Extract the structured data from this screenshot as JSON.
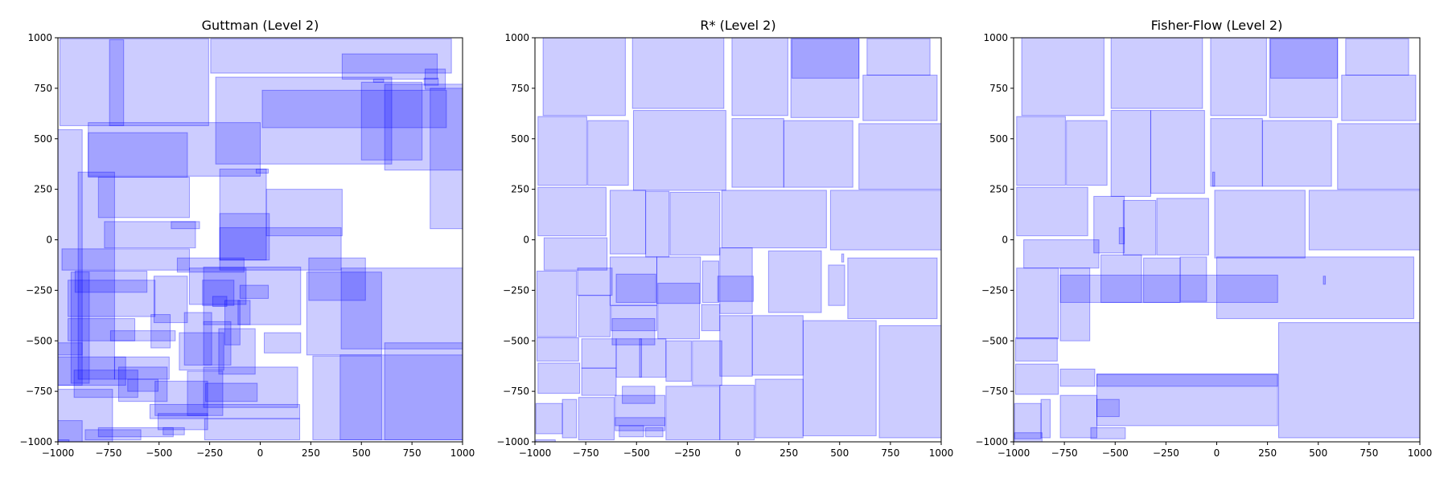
{
  "figure": {
    "background": "#ffffff",
    "fill_color": "#0000ff",
    "fill_opacity": 0.2,
    "edge_opacity": 0.35
  },
  "chart_data": [
    {
      "type": "rectangles",
      "title": "Guttman (Level 2)",
      "xlim": [
        -1000,
        1000
      ],
      "ylim": [
        -1000,
        1000
      ],
      "xticks": [
        -1000,
        -750,
        -500,
        -250,
        0,
        250,
        500,
        750,
        1000
      ],
      "yticks": [
        -1000,
        -750,
        -500,
        -250,
        0,
        250,
        500,
        750,
        1000
      ],
      "grid": false,
      "rects": [
        [
          -990,
          565,
          -255,
          995
        ],
        [
          -745,
          565,
          -675,
          990
        ],
        [
          -245,
          825,
          945,
          995
        ],
        [
          -220,
          375,
          650,
          805
        ],
        [
          -850,
          315,
          0,
          580
        ],
        [
          -1000,
          -570,
          -880,
          545
        ],
        [
          -850,
          310,
          -360,
          530
        ],
        [
          -900,
          -690,
          -720,
          335
        ],
        [
          -800,
          110,
          -350,
          310
        ],
        [
          -770,
          -40,
          -320,
          90
        ],
        [
          -440,
          55,
          -300,
          90
        ],
        [
          -980,
          -150,
          -350,
          -45
        ],
        [
          -935,
          -710,
          -845,
          -160
        ],
        [
          -1000,
          -720,
          -665,
          -580
        ],
        [
          -1000,
          -720,
          -880,
          -510
        ],
        [
          -950,
          -380,
          -520,
          -200
        ],
        [
          -915,
          -260,
          -560,
          -155
        ],
        [
          -950,
          -500,
          -620,
          -390
        ],
        [
          -740,
          -500,
          -420,
          -450
        ],
        [
          -720,
          -690,
          -450,
          -580
        ],
        [
          -920,
          -780,
          -605,
          -645
        ],
        [
          -655,
          -750,
          -505,
          -690
        ],
        [
          -520,
          -870,
          -260,
          -700
        ],
        [
          -505,
          -940,
          -260,
          -860
        ],
        [
          -545,
          -885,
          195,
          -815
        ],
        [
          -275,
          -990,
          195,
          -885
        ],
        [
          -1000,
          -1000,
          -730,
          -740
        ],
        [
          -1000,
          -1000,
          -880,
          -895
        ],
        [
          -865,
          -990,
          -590,
          -940
        ],
        [
          -800,
          -975,
          -430,
          -930
        ],
        [
          -480,
          -965,
          -375,
          -930
        ],
        [
          -1000,
          -1000,
          -945,
          -990
        ],
        [
          -700,
          -800,
          -460,
          -630
        ],
        [
          -525,
          -410,
          -360,
          -180
        ],
        [
          -540,
          -535,
          -445,
          -370
        ],
        [
          -400,
          -645,
          -180,
          -460
        ],
        [
          -375,
          -620,
          -240,
          -360
        ],
        [
          -360,
          -870,
          -185,
          -650
        ],
        [
          -280,
          -830,
          185,
          -630
        ],
        [
          -280,
          -420,
          200,
          -135
        ],
        [
          -285,
          -325,
          -130,
          -200
        ],
        [
          -280,
          -620,
          -145,
          -405
        ],
        [
          -175,
          -520,
          -100,
          -300
        ],
        [
          -205,
          -665,
          -25,
          -440
        ],
        [
          -110,
          -420,
          -50,
          -300
        ],
        [
          -200,
          -100,
          45,
          130
        ],
        [
          -200,
          -150,
          400,
          60
        ],
        [
          -410,
          -160,
          -80,
          -90
        ],
        [
          -350,
          -320,
          -70,
          -140
        ],
        [
          -100,
          -290,
          40,
          -225
        ],
        [
          -200,
          -100,
          30,
          350
        ],
        [
          -20,
          330,
          40,
          350
        ],
        [
          20,
          -560,
          200,
          -460
        ],
        [
          230,
          -570,
          600,
          -160
        ],
        [
          240,
          -300,
          520,
          -90
        ],
        [
          260,
          -990,
          600,
          -575
        ],
        [
          400,
          -540,
          1000,
          -140
        ],
        [
          395,
          -990,
          1000,
          -570
        ],
        [
          615,
          -990,
          1000,
          -510
        ],
        [
          30,
          20,
          405,
          250
        ],
        [
          10,
          555,
          920,
          740
        ],
        [
          615,
          345,
          1000,
          770
        ],
        [
          840,
          55,
          1000,
          750
        ],
        [
          500,
          395,
          800,
          780
        ],
        [
          405,
          795,
          875,
          920
        ],
        [
          560,
          780,
          610,
          795
        ],
        [
          815,
          745,
          915,
          845
        ],
        [
          810,
          765,
          880,
          800
        ],
        [
          -270,
          -800,
          -15,
          -710
        ],
        [
          -235,
          -330,
          -165,
          -280
        ]
      ]
    },
    {
      "type": "rectangles",
      "title": "R* (Level 2)",
      "xlim": [
        -1000,
        1000
      ],
      "ylim": [
        -1000,
        1000
      ],
      "xticks": [
        -1000,
        -750,
        -500,
        -250,
        0,
        250,
        500,
        750,
        1000
      ],
      "yticks": [
        -1000,
        -750,
        -500,
        -250,
        0,
        250,
        500,
        750,
        1000
      ],
      "grid": false,
      "rects": [
        [
          -960,
          615,
          -555,
          1000
        ],
        [
          -520,
          650,
          -70,
          1000
        ],
        [
          -30,
          615,
          245,
          1000
        ],
        [
          260,
          605,
          595,
          1000
        ],
        [
          265,
          800,
          595,
          995
        ],
        [
          635,
          815,
          945,
          995
        ],
        [
          615,
          590,
          980,
          815
        ],
        [
          -985,
          270,
          -745,
          610
        ],
        [
          -740,
          270,
          -540,
          590
        ],
        [
          -515,
          245,
          -60,
          640
        ],
        [
          -30,
          260,
          225,
          600
        ],
        [
          225,
          260,
          565,
          590
        ],
        [
          595,
          250,
          1000,
          575
        ],
        [
          -985,
          20,
          -650,
          260
        ],
        [
          -630,
          -70,
          -455,
          245
        ],
        [
          -455,
          -85,
          -340,
          240
        ],
        [
          -335,
          -75,
          -90,
          235
        ],
        [
          -80,
          -40,
          435,
          245
        ],
        [
          455,
          -50,
          1000,
          245
        ],
        [
          -955,
          -150,
          -645,
          10
        ],
        [
          -990,
          -480,
          -795,
          -155
        ],
        [
          -790,
          -275,
          -620,
          -140
        ],
        [
          -785,
          -480,
          -630,
          -275
        ],
        [
          -630,
          -325,
          -400,
          -85
        ],
        [
          -625,
          -450,
          -400,
          -325
        ],
        [
          -620,
          -520,
          -410,
          -390
        ],
        [
          -400,
          -315,
          -185,
          -85
        ],
        [
          -395,
          -490,
          -190,
          -215
        ],
        [
          -175,
          -310,
          -95,
          -105
        ],
        [
          -180,
          -450,
          -90,
          -320
        ],
        [
          -90,
          -365,
          70,
          -40
        ],
        [
          150,
          -360,
          410,
          -55
        ],
        [
          445,
          -325,
          525,
          -125
        ],
        [
          540,
          -390,
          980,
          -90
        ],
        [
          -100,
          -305,
          75,
          -180
        ],
        [
          -600,
          -310,
          -405,
          -170
        ],
        [
          -990,
          -600,
          -785,
          -485
        ],
        [
          -985,
          -760,
          -780,
          -610
        ],
        [
          -770,
          -635,
          -600,
          -490
        ],
        [
          -770,
          -770,
          -600,
          -635
        ],
        [
          -600,
          -680,
          -475,
          -490
        ],
        [
          -485,
          -680,
          -355,
          -490
        ],
        [
          -355,
          -700,
          -230,
          -500
        ],
        [
          -225,
          -720,
          -80,
          -500
        ],
        [
          -90,
          -675,
          70,
          -375
        ],
        [
          70,
          -670,
          320,
          -375
        ],
        [
          320,
          -970,
          680,
          -400
        ],
        [
          695,
          -980,
          1000,
          -425
        ],
        [
          -995,
          -960,
          -865,
          -810
        ],
        [
          -865,
          -980,
          -795,
          -790
        ],
        [
          -785,
          -990,
          -610,
          -780
        ],
        [
          -605,
          -920,
          -360,
          -770
        ],
        [
          -605,
          -945,
          -360,
          -880
        ],
        [
          -585,
          -975,
          -465,
          -920
        ],
        [
          -455,
          -975,
          -370,
          -930
        ],
        [
          -355,
          -990,
          -90,
          -725
        ],
        [
          -90,
          -990,
          80,
          -720
        ],
        [
          85,
          -980,
          320,
          -690
        ],
        [
          -570,
          -810,
          -410,
          -725
        ],
        [
          -995,
          -1000,
          -900,
          -990
        ],
        [
          510,
          -110,
          520,
          -70
        ]
      ]
    },
    {
      "type": "rectangles",
      "title": "Fisher-Flow (Level 2)",
      "xlim": [
        -1000,
        1000
      ],
      "ylim": [
        -1000,
        1000
      ],
      "xticks": [
        -1000,
        -750,
        -500,
        -250,
        0,
        250,
        500,
        750,
        1000
      ],
      "yticks": [
        -1000,
        -750,
        -500,
        -250,
        0,
        250,
        500,
        750,
        1000
      ],
      "grid": false,
      "rects": [
        [
          -960,
          615,
          -555,
          1000
        ],
        [
          -520,
          650,
          -70,
          1000
        ],
        [
          -30,
          615,
          245,
          1000
        ],
        [
          260,
          605,
          595,
          1000
        ],
        [
          265,
          800,
          595,
          995
        ],
        [
          635,
          815,
          945,
          995
        ],
        [
          615,
          590,
          980,
          815
        ],
        [
          -985,
          270,
          -745,
          610
        ],
        [
          -740,
          270,
          -540,
          590
        ],
        [
          -520,
          215,
          -325,
          640
        ],
        [
          -325,
          230,
          -60,
          640
        ],
        [
          -30,
          265,
          225,
          600
        ],
        [
          225,
          265,
          565,
          590
        ],
        [
          595,
          250,
          1000,
          575
        ],
        [
          -985,
          20,
          -635,
          260
        ],
        [
          -605,
          -65,
          -455,
          215
        ],
        [
          -460,
          -75,
          -300,
          195
        ],
        [
          -295,
          -75,
          -40,
          205
        ],
        [
          -20,
          265,
          -10,
          335
        ],
        [
          -10,
          -90,
          435,
          245
        ],
        [
          455,
          -50,
          1000,
          245
        ],
        [
          -950,
          -140,
          -580,
          0
        ],
        [
          -985,
          -490,
          -780,
          -140
        ],
        [
          -770,
          -500,
          -625,
          -140
        ],
        [
          -570,
          -310,
          -370,
          -75
        ],
        [
          -360,
          -310,
          -180,
          -90
        ],
        [
          -180,
          -305,
          -50,
          -85
        ],
        [
          -770,
          -310,
          300,
          -175
        ],
        [
          0,
          -390,
          970,
          -85
        ],
        [
          -990,
          -600,
          -785,
          -485
        ],
        [
          -990,
          -765,
          -780,
          -615
        ],
        [
          -770,
          -725,
          -600,
          -640
        ],
        [
          -770,
          -980,
          -590,
          -770
        ],
        [
          -590,
          -920,
          300,
          -665
        ],
        [
          -590,
          -725,
          300,
          -665
        ],
        [
          -590,
          -875,
          -480,
          -790
        ],
        [
          -620,
          -985,
          -450,
          -930
        ],
        [
          -995,
          -985,
          -865,
          -810
        ],
        [
          -865,
          -980,
          -820,
          -790
        ],
        [
          -995,
          -1000,
          -860,
          -955
        ],
        [
          305,
          -980,
          1000,
          -410
        ],
        [
          525,
          -220,
          535,
          -180
        ],
        [
          -480,
          -20,
          -455,
          60
        ]
      ]
    }
  ]
}
